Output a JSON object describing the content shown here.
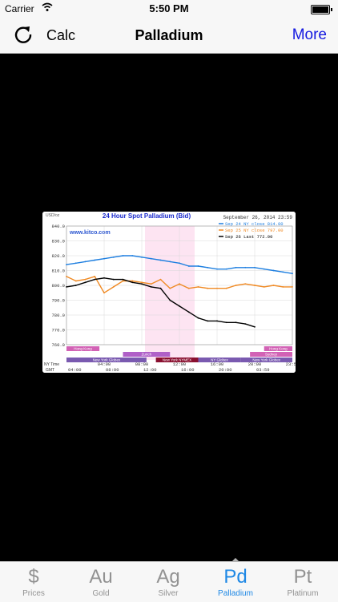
{
  "status": {
    "carrier": "Carrier",
    "time": "5:50 PM"
  },
  "navbar": {
    "calc_label": "Calc",
    "title": "Palladium",
    "more_label": "More"
  },
  "chart_data": {
    "type": "line",
    "title": "24 Hour Spot Palladium (Bid)",
    "date_label": "September 26, 2014 23:59",
    "watermark": "www.kitco.com",
    "ylabel": "USD/oz",
    "ylim": [
      760,
      840
    ],
    "yticks": [
      "840.0",
      "830.0",
      "820.0",
      "810.0",
      "800.0",
      "790.0",
      "780.0",
      "770.0",
      "760.0"
    ],
    "xticks_ny": [
      "04:00",
      "08:00",
      "12:00",
      "16:00",
      "20:00",
      "23:59"
    ],
    "xticks_gmt": [
      "04:00",
      "08:00",
      "12:00",
      "16:00",
      "20:00",
      "03:59"
    ],
    "ny_time_label": "NY Time",
    "gmt_label": "GMT",
    "sessions": [
      "Hong Kong",
      "Zurich",
      "New York NYMEX",
      "NY Globex",
      "Sydney",
      "Hong Kong",
      "New York Globex",
      "New York Globex"
    ],
    "grid": true,
    "x": [
      0,
      1,
      2,
      3,
      4,
      5,
      6,
      7,
      8,
      9,
      10,
      11,
      12,
      13,
      14,
      15,
      16,
      17,
      18,
      19,
      20,
      21,
      22,
      23,
      24
    ],
    "series": [
      {
        "name": "Sep 24 NY close 814.00",
        "color": "#1e7fe0",
        "values": [
          814,
          815,
          816,
          817,
          818,
          819,
          820,
          820,
          819,
          818,
          817,
          816,
          815,
          813,
          813,
          812,
          811,
          811,
          812,
          812,
          812,
          811,
          810,
          809,
          808
        ]
      },
      {
        "name": "Sep 25 NY close 797.00",
        "color": "#f08a24",
        "values": [
          806,
          803,
          804,
          806,
          795,
          799,
          803,
          803,
          802,
          801,
          804,
          798,
          801,
          798,
          799,
          798,
          798,
          798,
          800,
          801,
          800,
          799,
          800,
          799,
          799
        ]
      },
      {
        "name": "Sep 26 Last 772.00",
        "color": "#000000",
        "values": [
          799,
          800,
          802,
          804,
          805,
          804,
          804,
          802,
          801,
          799,
          798,
          790,
          786,
          782,
          778,
          776,
          776,
          775,
          775,
          774,
          772,
          null,
          null,
          null,
          null
        ]
      }
    ]
  },
  "tabs": [
    {
      "glyph": "$",
      "label": "Prices"
    },
    {
      "glyph": "Au",
      "label": "Gold"
    },
    {
      "glyph": "Ag",
      "label": "Silver"
    },
    {
      "glyph": "Pd",
      "label": "Palladium"
    },
    {
      "glyph": "Pt",
      "label": "Platinum"
    }
  ]
}
